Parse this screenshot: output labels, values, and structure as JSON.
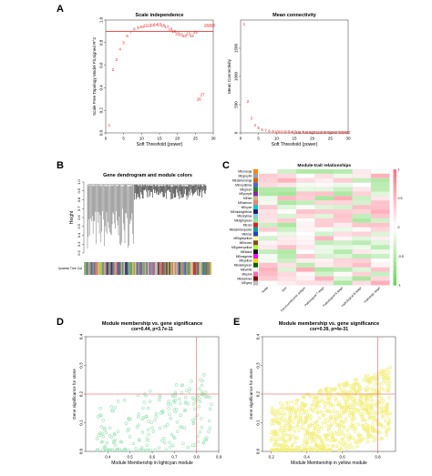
{
  "panels": {
    "A": "A",
    "B": "B",
    "C": "C",
    "D": "D",
    "E": "E"
  },
  "chart_data": [
    {
      "type": "scatter",
      "panel": "A",
      "title": "Scale independence",
      "xlabel": "Soft Threshold (power)",
      "ylabel": "Scale Free Topology Model Fit,signed R^2",
      "xlim": [
        0,
        30
      ],
      "ylim": [
        0.0,
        1.0
      ],
      "xticks": [
        "0",
        "5",
        "10",
        "15",
        "20",
        "25",
        "30"
      ],
      "yticks": [
        "0.0",
        "0.2",
        "0.4",
        "0.6",
        "0.8",
        "1.0"
      ],
      "hline": 0.9,
      "point_color": "#e31a1c",
      "line_color": "#e31a1c",
      "points": [
        {
          "x": 1,
          "y": 0.07,
          "label": "1"
        },
        {
          "x": 2,
          "y": 0.56,
          "label": "2"
        },
        {
          "x": 3,
          "y": 0.65,
          "label": "3"
        },
        {
          "x": 4,
          "y": 0.74,
          "label": "4"
        },
        {
          "x": 5,
          "y": 0.8,
          "label": "5"
        },
        {
          "x": 6,
          "y": 0.86,
          "label": "6"
        },
        {
          "x": 7,
          "y": 0.89,
          "label": "7"
        },
        {
          "x": 8,
          "y": 0.92,
          "label": "8"
        },
        {
          "x": 9,
          "y": 0.93,
          "label": "9"
        },
        {
          "x": 10,
          "y": 0.94,
          "label": "10"
        },
        {
          "x": 11,
          "y": 0.95,
          "label": "11"
        },
        {
          "x": 12,
          "y": 0.95,
          "label": "12"
        },
        {
          "x": 13,
          "y": 0.955,
          "label": "13"
        },
        {
          "x": 14,
          "y": 0.96,
          "label": "14"
        },
        {
          "x": 15,
          "y": 0.96,
          "label": "15"
        },
        {
          "x": 16,
          "y": 0.95,
          "label": "16"
        },
        {
          "x": 17,
          "y": 0.94,
          "label": "17"
        },
        {
          "x": 18,
          "y": 0.92,
          "label": "18"
        },
        {
          "x": 19,
          "y": 0.9,
          "label": "19"
        },
        {
          "x": 20,
          "y": 0.88,
          "label": "20"
        },
        {
          "x": 21,
          "y": 0.87,
          "label": "21"
        },
        {
          "x": 22,
          "y": 0.86,
          "label": "22"
        },
        {
          "x": 23,
          "y": 0.88,
          "label": "23"
        },
        {
          "x": 24,
          "y": 0.86,
          "label": "24"
        },
        {
          "x": 25,
          "y": 0.89,
          "label": "25"
        },
        {
          "x": 26,
          "y": 0.3,
          "label": "26"
        },
        {
          "x": 27,
          "y": 0.34,
          "label": "27"
        },
        {
          "x": 28,
          "y": 0.95,
          "label": "28"
        },
        {
          "x": 29,
          "y": 0.95,
          "label": "29"
        },
        {
          "x": 30,
          "y": 0.95,
          "label": "30"
        }
      ]
    },
    {
      "type": "scatter",
      "panel": "A",
      "title": "Mean connectivity",
      "xlabel": "Soft Threshold (power)",
      "ylabel": "Mean Connectivity",
      "xlim": [
        0,
        30
      ],
      "ylim": [
        0,
        2000
      ],
      "xticks": [
        "0",
        "5",
        "10",
        "15",
        "20",
        "25",
        "30"
      ],
      "yticks": [
        "0",
        "500",
        "1000",
        "1500"
      ],
      "point_color": "#e31a1c",
      "points": [
        {
          "x": 1,
          "y": 1930,
          "label": "1"
        },
        {
          "x": 2,
          "y": 560,
          "label": "2"
        },
        {
          "x": 3,
          "y": 260,
          "label": "3"
        },
        {
          "x": 4,
          "y": 140,
          "label": "4"
        },
        {
          "x": 5,
          "y": 85,
          "label": "5"
        },
        {
          "x": 6,
          "y": 55,
          "label": "6"
        },
        {
          "x": 7,
          "y": 40,
          "label": "7"
        },
        {
          "x": 8,
          "y": 30,
          "label": "8"
        },
        {
          "x": 9,
          "y": 24,
          "label": "9"
        },
        {
          "x": 10,
          "y": 20,
          "label": "10"
        },
        {
          "x": 11,
          "y": 18,
          "label": "11"
        },
        {
          "x": 12,
          "y": 16,
          "label": "12"
        },
        {
          "x": 13,
          "y": 15,
          "label": "13"
        },
        {
          "x": 14,
          "y": 14,
          "label": "14"
        },
        {
          "x": 15,
          "y": 13,
          "label": "15"
        },
        {
          "x": 16,
          "y": 12,
          "label": "16"
        },
        {
          "x": 17,
          "y": 12,
          "label": "17"
        },
        {
          "x": 18,
          "y": 11,
          "label": "18"
        },
        {
          "x": 19,
          "y": 11,
          "label": "19"
        },
        {
          "x": 20,
          "y": 10,
          "label": "20"
        },
        {
          "x": 21,
          "y": 10,
          "label": "21"
        },
        {
          "x": 22,
          "y": 10,
          "label": "22"
        },
        {
          "x": 23,
          "y": 9,
          "label": "23"
        },
        {
          "x": 24,
          "y": 9,
          "label": "24"
        },
        {
          "x": 25,
          "y": 9,
          "label": "25"
        },
        {
          "x": 26,
          "y": 9,
          "label": "26"
        },
        {
          "x": 27,
          "y": 8,
          "label": "27"
        },
        {
          "x": 28,
          "y": 8,
          "label": "28"
        },
        {
          "x": 29,
          "y": 8,
          "label": "29"
        },
        {
          "x": 30,
          "y": 8,
          "label": "30"
        }
      ]
    },
    {
      "type": "dendrogram",
      "panel": "B",
      "title": "Gene dendrogram and module colors",
      "ylabel": "Height",
      "ylim": [
        0.2,
        1.0
      ],
      "yticks": [
        "1.0",
        "0.9",
        "0.8",
        "0.7",
        "0.6",
        "0.5",
        "0.4",
        "0.3",
        "0.2"
      ],
      "color_bar_label": "Dynamic Tree Cut",
      "module_color_strip": [
        "#2f2f8f",
        "#7a7a7a",
        "#b34040",
        "#c9b37d",
        "#5a9b5a",
        "#888888",
        "#d4a96a",
        "#3d6fb3",
        "#9b5f9b",
        "#c86e6e",
        "#6aa36a",
        "#b0b0b0",
        "#d9c65a",
        "#7d4c2a",
        "#4c7d9b",
        "#9b9b3d",
        "#e0a0a0",
        "#508050",
        "#a06090",
        "#cfcf8f",
        "#6060b0",
        "#b08050",
        "#70a0a0",
        "#c0c0c0",
        "#904040",
        "#d0b060",
        "#5070a0",
        "#a0a060",
        "#80b080",
        "#b06080",
        "#4a4a4a",
        "#c09070",
        "#7090c0",
        "#a0c070",
        "#d08060",
        "#606090",
        "#e0c080",
        "#8a5a8a"
      ]
    },
    {
      "type": "heatmap",
      "panel": "C",
      "title": "Module-trait relationships",
      "columns": [
        "Nodal",
        "Size",
        "Carcinoembryonic antigen",
        "Pathological T stage",
        "Pathological N stage",
        "Pathological M stage",
        "Pathologic stage"
      ],
      "rows": [
        {
          "module": "MEorange",
          "color": "#ff8c00"
        },
        {
          "module": "MEgrey60",
          "color": "#a0a0a0"
        },
        {
          "module": "MEdarkorange",
          "color": "#e06000"
        },
        {
          "module": "MEroyalblue",
          "color": "#4169e1"
        },
        {
          "module": "MEgreen",
          "color": "#228b22"
        },
        {
          "module": "MEpurple",
          "color": "#8b22b0"
        },
        {
          "module": "MEtan",
          "color": "#d2b48c"
        },
        {
          "module": "MEsalmon",
          "color": "#fa8072"
        },
        {
          "module": "MEcyan",
          "color": "#00cccc"
        },
        {
          "module": "MEmidnightblue",
          "color": "#191970"
        },
        {
          "module": "MEskyblue",
          "color": "#87ceeb"
        },
        {
          "module": "MElightgreen",
          "color": "#90ee90"
        },
        {
          "module": "MEred",
          "color": "#e31a1c"
        },
        {
          "module": "MEdarkturquoise",
          "color": "#00a0a0"
        },
        {
          "module": "MEblue",
          "color": "#1f3fd0"
        },
        {
          "module": "MElightyellow",
          "color": "#ffffa0"
        },
        {
          "module": "MEbrown",
          "color": "#8b4513"
        },
        {
          "module": "MEgreenyellow",
          "color": "#adff2f"
        },
        {
          "module": "MEblack",
          "color": "#111111"
        },
        {
          "module": "MEmagenta",
          "color": "#ff00ff"
        },
        {
          "module": "MEyellow",
          "color": "#ffd700"
        },
        {
          "module": "MEdarkgreen",
          "color": "#006400"
        },
        {
          "module": "MEwhite",
          "color": "#f4f4f4"
        },
        {
          "module": "MEpink",
          "color": "#ff69b4"
        },
        {
          "module": "MEdarkred",
          "color": "#8b0000"
        },
        {
          "module": "MEgrey",
          "color": "#bebebe"
        }
      ],
      "colorbar_ticks": [
        "1",
        "0.5",
        "0",
        "-0.5",
        "-1"
      ],
      "colorbar_range": [
        -1,
        1
      ]
    },
    {
      "type": "scatter",
      "panel": "D",
      "title": "Module membership vs. gene significance",
      "subtitle": "cor=0.44, p=3.7e-11",
      "xlabel": "Module Membership in lightcyan module",
      "ylabel": "Gene significance for  stone",
      "xlim": [
        0.3,
        0.9
      ],
      "ylim": [
        0.0,
        0.4
      ],
      "xticks": [
        "0.4",
        "0.5",
        "0.6",
        "0.7",
        "0.8",
        "0.9"
      ],
      "yticks": [
        "0.0",
        "0.1",
        "0.2",
        "0.3",
        "0.4"
      ],
      "vline": 0.8,
      "hline": 0.2,
      "point_color": "#a8e6c0",
      "line_color": "#f08080",
      "n_points": 220
    },
    {
      "type": "scatter",
      "panel": "E",
      "title": "Module membership vs. gene significance",
      "subtitle": "cor=0.39, p=4e-31",
      "xlabel": "Module Membership in yellow module",
      "ylabel": "Gene significance for  stone",
      "xlim": [
        0.15,
        0.9
      ],
      "ylim": [
        0.0,
        0.4
      ],
      "xticks": [
        "0.2",
        "0.4",
        "0.6",
        "0.8"
      ],
      "yticks": [
        "0.0",
        "0.1",
        "0.2",
        "0.3",
        "0.4"
      ],
      "vline": 0.8,
      "hline": 0.2,
      "point_color": "#f2ef7a",
      "line_color": "#f08080",
      "n_points": 850
    }
  ]
}
